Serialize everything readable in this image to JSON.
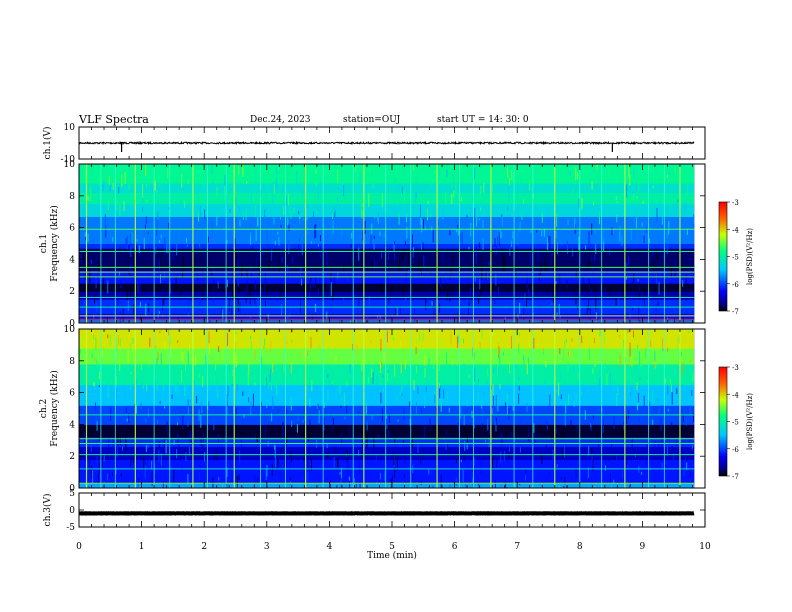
{
  "header": {
    "title": "VLF Spectra",
    "date": "Dec.24, 2023",
    "station": "station=OUJ",
    "start_ut": "start  UT =   14: 30: 0"
  },
  "chart_data": {
    "type": "heatmap",
    "x_axis": {
      "label": "Time  (min)",
      "range": [
        0,
        10
      ],
      "ticks": [
        "0",
        "1",
        "2",
        "3",
        "4",
        "5",
        "6",
        "7",
        "8",
        "9",
        "10"
      ],
      "data_end_min": 9.83
    },
    "panels": [
      {
        "id": "ch1-waveform",
        "type": "line",
        "ylabel": "ch.1(V)",
        "ylim": [
          -10,
          10
        ],
        "yticks": [
          "10",
          "-10"
        ],
        "baseline_v": 0,
        "color": "#000000",
        "spikes_min": [
          0.68,
          8.52
        ]
      },
      {
        "id": "ch1-spectrogram",
        "type": "heatmap",
        "ylabel_line1": "ch.1",
        "ylabel_line2": "Frequency  (kHz)",
        "ylim_khz": [
          0,
          10
        ],
        "yticks": [
          "0",
          "2",
          "4",
          "6",
          "8",
          "10"
        ],
        "colorbar": {
          "label": "log(PSD)(V²/Hz)",
          "range": [
            -7,
            -3
          ],
          "ticks": [
            "-3",
            "-4",
            "-5",
            "-6",
            "-7"
          ]
        },
        "bands": [
          {
            "from": 0.0,
            "to": 0.3,
            "level": -5.8
          },
          {
            "from": 0.3,
            "to": 0.6,
            "level": -6.3
          },
          {
            "from": 0.6,
            "to": 1.5,
            "level": -6.1
          },
          {
            "from": 1.5,
            "to": 2.0,
            "level": -6.6
          },
          {
            "from": 2.0,
            "to": 2.5,
            "level": -6.9
          },
          {
            "from": 2.5,
            "to": 3.3,
            "level": -6.2
          },
          {
            "from": 3.3,
            "to": 4.7,
            "level": -6.8
          },
          {
            "from": 4.7,
            "to": 5.0,
            "level": -6.1
          },
          {
            "from": 5.0,
            "to": 6.7,
            "level": -5.8
          },
          {
            "from": 6.7,
            "to": 7.5,
            "level": -5.3
          },
          {
            "from": 7.5,
            "to": 8.2,
            "level": -5.0
          },
          {
            "from": 8.2,
            "to": 8.8,
            "level": -5.2
          },
          {
            "from": 8.8,
            "to": 10.0,
            "level": -4.9
          }
        ],
        "lines_khz": [
          {
            "f": 0.2,
            "level": -3.0
          },
          {
            "f": 0.45,
            "level": -4.2
          },
          {
            "f": 1.0,
            "level": -5.0
          },
          {
            "f": 1.6,
            "level": -5.2
          },
          {
            "f": 2.9,
            "level": -4.5
          },
          {
            "f": 3.2,
            "level": -4.4
          },
          {
            "f": 3.5,
            "level": -4.6
          },
          {
            "f": 4.5,
            "level": -4.8
          },
          {
            "f": 5.9,
            "level": -4.6
          }
        ]
      },
      {
        "id": "ch2-spectrogram",
        "type": "heatmap",
        "ylabel_line1": "ch.2",
        "ylabel_line2": "Frequency  (kHz)",
        "ylim_khz": [
          0,
          10
        ],
        "yticks": [
          "0",
          "2",
          "4",
          "6",
          "8",
          "10"
        ],
        "colorbar": {
          "label": "log(PSD)(V²/Hz)",
          "range": [
            -7,
            -3
          ],
          "ticks": [
            "-3",
            "-4",
            "-5",
            "-6",
            "-7"
          ]
        },
        "bands": [
          {
            "from": 0.0,
            "to": 0.3,
            "level": -5.6
          },
          {
            "from": 0.3,
            "to": 1.8,
            "level": -6.2
          },
          {
            "from": 1.8,
            "to": 2.6,
            "level": -6.5
          },
          {
            "from": 2.6,
            "to": 3.2,
            "level": -6.1
          },
          {
            "from": 3.2,
            "to": 4.0,
            "level": -6.9
          },
          {
            "from": 4.0,
            "to": 5.2,
            "level": -6.0
          },
          {
            "from": 5.2,
            "to": 6.5,
            "level": -5.5
          },
          {
            "from": 6.5,
            "to": 7.8,
            "level": -5.0
          },
          {
            "from": 7.8,
            "to": 8.8,
            "level": -4.5
          },
          {
            "from": 8.8,
            "to": 10.0,
            "level": -4.1
          }
        ],
        "lines_khz": [
          {
            "f": 0.3,
            "level": -4.4
          },
          {
            "f": 1.2,
            "level": -5.2
          },
          {
            "f": 2.1,
            "level": -4.9
          },
          {
            "f": 2.8,
            "level": -4.7
          },
          {
            "f": 3.1,
            "level": -4.6
          },
          {
            "f": 4.6,
            "level": -4.9
          }
        ]
      },
      {
        "id": "ch3-waveform",
        "type": "line",
        "ylabel": "ch.3(V)",
        "ylim": [
          -5,
          5
        ],
        "yticks": [
          "5",
          "0",
          "-5"
        ],
        "baseline_v": -1.0,
        "color": "#000000"
      }
    ],
    "sferic_times_min": [
      0.12,
      0.35,
      0.58,
      0.9,
      1.2,
      1.45,
      1.82,
      2.05,
      2.35,
      2.48,
      2.9,
      3.3,
      3.62,
      3.9,
      4.38,
      4.55,
      4.9,
      5.3,
      5.72,
      6.08,
      6.3,
      6.58,
      6.95,
      7.25,
      7.6,
      8.0,
      8.35,
      8.72,
      9.1,
      9.35,
      9.6
    ]
  }
}
